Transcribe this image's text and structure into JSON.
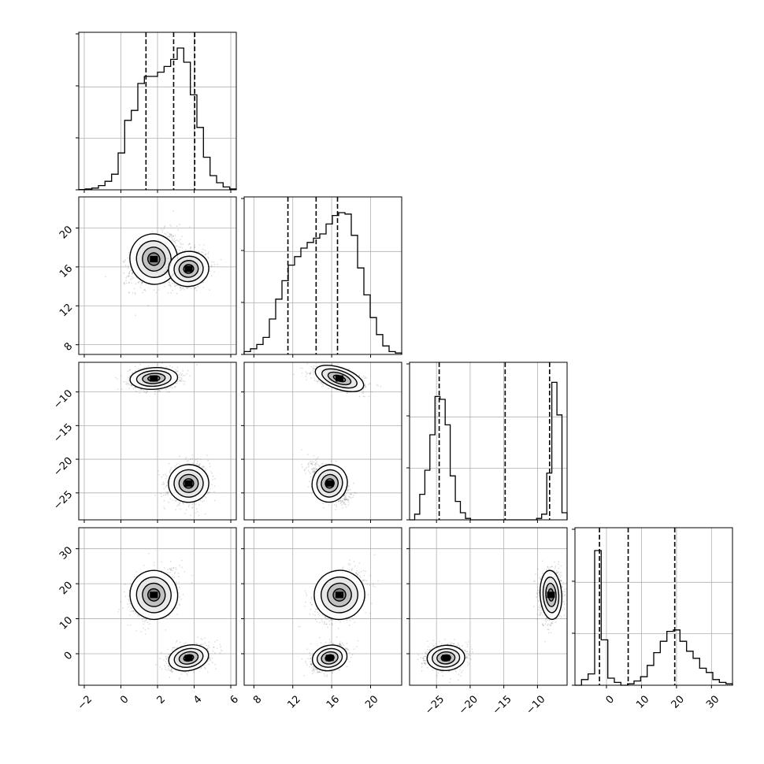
{
  "chart_data": {
    "type": "corner",
    "grid": true,
    "parameters": [
      {
        "name": "",
        "range": [
          -2.3,
          6.3
        ],
        "ticks": [
          -2,
          0,
          2,
          4,
          6
        ],
        "quantiles": [
          1.37,
          2.88,
          4.03
        ]
      },
      {
        "name": "",
        "range": [
          7.0,
          23.2
        ],
        "ticks": [
          8,
          12,
          16,
          20
        ],
        "quantiles": [
          11.5,
          14.4,
          16.6
        ]
      },
      {
        "name": "",
        "range": [
          -29.0,
          -5.6
        ],
        "ticks": [
          -25,
          -20,
          -15,
          -10
        ],
        "quantiles": [
          -24.6,
          -14.8,
          -8.2
        ]
      },
      {
        "name": "",
        "range": [
          -9.0,
          36.0
        ],
        "ticks": [
          0,
          10,
          20,
          30
        ],
        "quantiles": [
          -2.0,
          6.2,
          19.5
        ]
      }
    ],
    "histograms": [
      {
        "values": [
          0.002,
          0.006,
          0.012,
          0.03,
          0.06,
          0.11,
          0.26,
          0.49,
          0.56,
          0.75,
          0.8,
          0.8,
          0.83,
          0.87,
          0.92,
          1.0,
          0.9,
          0.67,
          0.44,
          0.23,
          0.1,
          0.05,
          0.02,
          0.006
        ]
      },
      {
        "values": [
          0.02,
          0.04,
          0.07,
          0.12,
          0.25,
          0.39,
          0.52,
          0.63,
          0.69,
          0.75,
          0.79,
          0.82,
          0.85,
          0.92,
          0.98,
          1.0,
          0.99,
          0.84,
          0.61,
          0.42,
          0.26,
          0.14,
          0.06,
          0.02,
          0.01
        ]
      },
      {
        "values": [
          0.0,
          0.04,
          0.18,
          0.35,
          0.6,
          0.87,
          0.85,
          0.67,
          0.31,
          0.13,
          0.05,
          0.01,
          0.0,
          0.0,
          0.0,
          0.0,
          0.0,
          0.0,
          0.0,
          0.0,
          0.0,
          0.0,
          0.0,
          0.0,
          0.0,
          0.01,
          0.04,
          0.33,
          0.97,
          0.74,
          0.05
        ]
      },
      {
        "values": [
          0.0,
          0.04,
          0.08,
          0.95,
          0.32,
          0.05,
          0.02,
          0.0,
          0.01,
          0.03,
          0.06,
          0.14,
          0.23,
          0.31,
          0.38,
          0.39,
          0.31,
          0.24,
          0.19,
          0.12,
          0.09,
          0.04,
          0.02,
          0.01
        ]
      }
    ],
    "scatter_clusters": [
      {
        "x": [
          1.8,
          16.8,
          -8.0,
          16.8
        ],
        "sd": [
          0.65,
          1.3,
          0.8,
          3.5
        ],
        "corr": [
          0.45
        ],
        "weight": 0.5
      },
      {
        "x": [
          3.7,
          15.8,
          -23.6,
          -1.2
        ],
        "sd": [
          0.55,
          0.9,
          1.4,
          1.8
        ],
        "corr": [
          0.2
        ],
        "weight": 0.5
      }
    ]
  }
}
